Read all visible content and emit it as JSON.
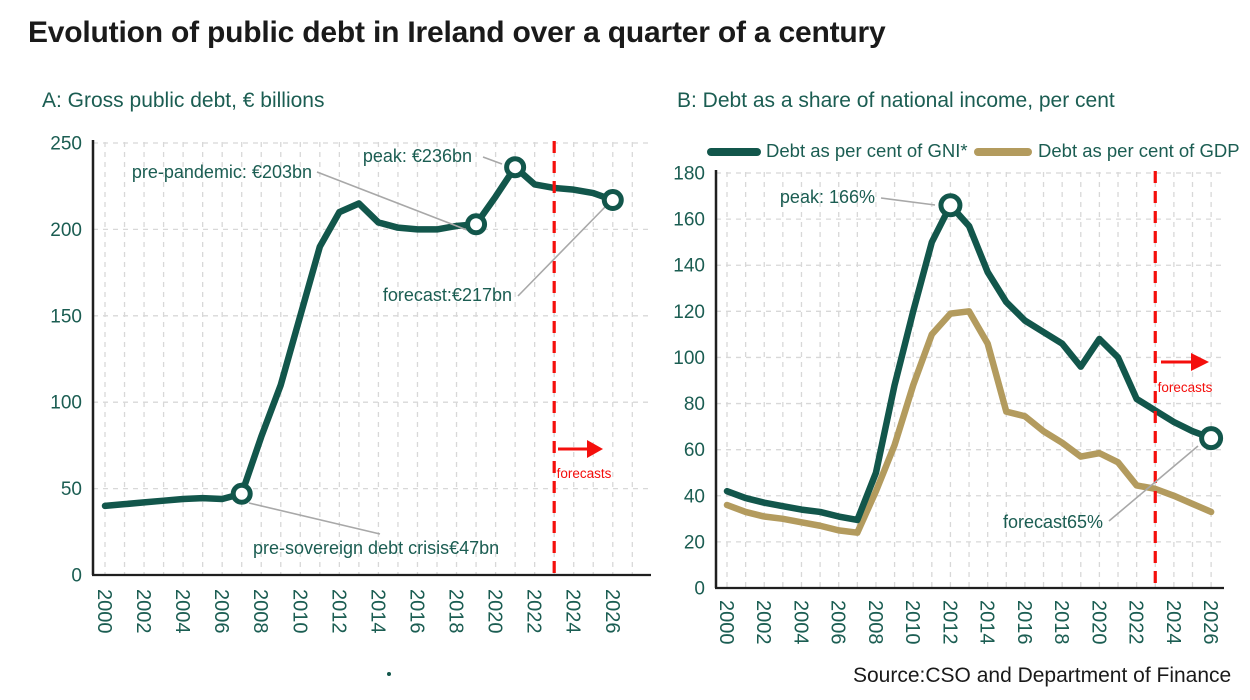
{
  "page": {
    "title": "Evolution of public debt in Ireland over a quarter of a century",
    "source": "Source:CSO and Department of Finance",
    "stray_dot": "decorative-period"
  },
  "colors": {
    "line_teal": "#12564B",
    "line_gold": "#B39B5E",
    "teal_text": "#1B5D52",
    "red": "#F40F0C",
    "leader_gray": "#A8A8A8",
    "grid": "#D8D8D8",
    "axis": "#1F1F1F",
    "title_text": "#1A1A1A"
  },
  "chart_data": [
    {
      "id": "panel-a",
      "type": "line",
      "title": "A: Gross public debt, € billions",
      "x": [
        2000,
        2001,
        2002,
        2003,
        2004,
        2005,
        2006,
        2007,
        2008,
        2009,
        2010,
        2011,
        2012,
        2013,
        2014,
        2015,
        2016,
        2017,
        2018,
        2019,
        2020,
        2021,
        2022,
        2023,
        2024,
        2025,
        2026
      ],
      "series": [
        {
          "name": "Gross public debt",
          "color": "line_teal",
          "values": [
            40,
            41,
            42,
            43,
            44,
            44.5,
            44,
            47,
            80,
            110,
            150,
            190,
            210,
            215,
            204,
            201,
            200,
            200,
            202,
            203,
            219,
            236,
            226,
            224,
            223,
            221,
            217
          ]
        }
      ],
      "ylim": [
        0,
        250
      ],
      "yticks": [
        0,
        50,
        100,
        150,
        200,
        250
      ],
      "xticks": [
        2000,
        2002,
        2004,
        2006,
        2008,
        2010,
        2012,
        2014,
        2016,
        2018,
        2020,
        2022,
        2024,
        2026
      ],
      "grid": true,
      "forecast_divider_year": 2023,
      "forecast_label": "forecasts",
      "annotations": [
        {
          "text": "pre-pandemic: €203bn",
          "year": 2019,
          "value": 203,
          "marker": true
        },
        {
          "text": "peak: €236bn",
          "year": 2021,
          "value": 236,
          "marker": true
        },
        {
          "text": "forecast:€217bn",
          "year": 2026,
          "value": 217,
          "marker": true
        },
        {
          "text": "pre-sovereign debt crisis€47bn",
          "year": 2007,
          "value": 47,
          "marker": true
        }
      ]
    },
    {
      "id": "panel-b",
      "type": "line",
      "title": "B: Debt as a share of national income, per cent",
      "legend": [
        {
          "label": "Debt as per cent of GNI*",
          "color": "line_teal"
        },
        {
          "label": "Debt as per cent of GDP",
          "color": "line_gold"
        }
      ],
      "x": [
        2000,
        2001,
        2002,
        2003,
        2004,
        2005,
        2006,
        2007,
        2008,
        2009,
        2010,
        2011,
        2012,
        2013,
        2014,
        2015,
        2016,
        2017,
        2018,
        2019,
        2020,
        2021,
        2022,
        2023,
        2024,
        2025,
        2026
      ],
      "series": [
        {
          "name": "Debt as per cent of GNI*",
          "color": "line_teal",
          "values": [
            42,
            39,
            37,
            35.5,
            34,
            33,
            31,
            29.5,
            50,
            88,
            120,
            150,
            166,
            157,
            137,
            124,
            116,
            111,
            106,
            96,
            108,
            100,
            82,
            77,
            72,
            68,
            65
          ]
        },
        {
          "name": "Debt as per cent of GDP",
          "color": "line_gold",
          "values": [
            36,
            33,
            31,
            30,
            28.5,
            27,
            25,
            24,
            42,
            62,
            88,
            110,
            119,
            120,
            106,
            76.5,
            74.5,
            68,
            63,
            57,
            58.5,
            54.5,
            44.5,
            43,
            40,
            36.5,
            33
          ]
        }
      ],
      "ylim": [
        0,
        180
      ],
      "yticks": [
        0,
        20,
        40,
        60,
        80,
        100,
        120,
        140,
        160,
        180
      ],
      "xticks": [
        2000,
        2002,
        2004,
        2006,
        2008,
        2010,
        2012,
        2014,
        2016,
        2018,
        2020,
        2022,
        2024,
        2026
      ],
      "grid": true,
      "forecast_divider_year": 2023,
      "forecast_label": "forecasts",
      "annotations": [
        {
          "text": "peak: 166%",
          "year": 2012,
          "value": 166,
          "marker": true
        },
        {
          "text": "forecast65%",
          "year": 2026,
          "value": 65,
          "marker": true
        }
      ]
    }
  ]
}
